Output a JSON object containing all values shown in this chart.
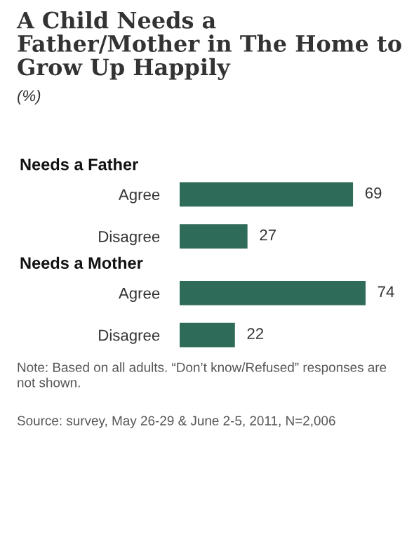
{
  "chart_data": {
    "type": "bar",
    "orientation": "horizontal",
    "title": "A Child Needs a Father/Mother in The Home to Grow Up Happily",
    "subtitle": "(%)",
    "categories": [
      "Agree",
      "Disagree",
      "Agree",
      "Disagree"
    ],
    "values": [
      69,
      27,
      74,
      22
    ],
    "color": "#2e6b58",
    "data_labels": true,
    "grid": false,
    "legend": false,
    "annotations": [
      "Needs a Father",
      "Needs a Mother",
      "Note: Based on all adults. “Don’t know/Refused” responses are not shown.",
      "Source: survey, May 26-29 & June 2-5, 2011, N=2,006"
    ]
  }
}
